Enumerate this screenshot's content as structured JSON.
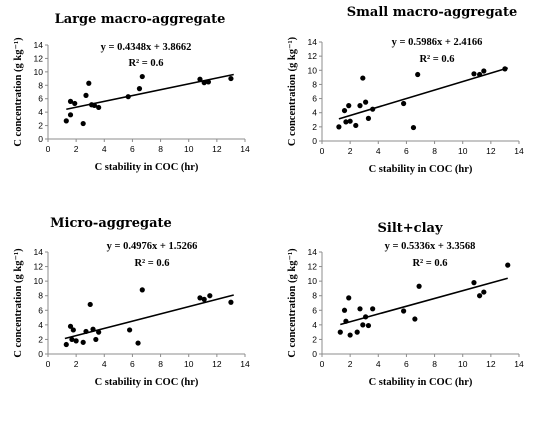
{
  "chart_data": [
    {
      "type": "scatter",
      "title": "Large macro-aggregate",
      "xlabel": "C stability in COC (hr)",
      "ylabel": "C concentration (g kg⁻¹)",
      "xlim": [
        0,
        14
      ],
      "ylim": [
        0,
        14
      ],
      "xticks": [
        0,
        2,
        4,
        6,
        8,
        10,
        12,
        14
      ],
      "yticks": [
        0,
        2,
        4,
        6,
        8,
        10,
        12,
        14
      ],
      "equation": "y = 0.4348x + 3.8662",
      "r2": "R² = 0.6",
      "trend": {
        "slope": 0.4348,
        "intercept": 3.8662,
        "x_range": [
          1.3,
          13.2
        ]
      },
      "points": [
        {
          "x": 1.3,
          "y": 2.7
        },
        {
          "x": 1.6,
          "y": 3.6
        },
        {
          "x": 1.6,
          "y": 5.6
        },
        {
          "x": 1.9,
          "y": 5.3
        },
        {
          "x": 2.5,
          "y": 2.3
        },
        {
          "x": 2.7,
          "y": 6.5
        },
        {
          "x": 2.9,
          "y": 8.3
        },
        {
          "x": 3.1,
          "y": 5.1
        },
        {
          "x": 3.3,
          "y": 5.0
        },
        {
          "x": 3.6,
          "y": 4.7
        },
        {
          "x": 5.7,
          "y": 6.3
        },
        {
          "x": 6.5,
          "y": 7.5
        },
        {
          "x": 6.7,
          "y": 9.3
        },
        {
          "x": 10.8,
          "y": 8.9
        },
        {
          "x": 11.1,
          "y": 8.4
        },
        {
          "x": 11.4,
          "y": 8.5
        },
        {
          "x": 13.0,
          "y": 9.0
        }
      ]
    },
    {
      "type": "scatter",
      "title": "Small macro-aggregate",
      "xlabel": "C stability in COC (hr)",
      "ylabel": "C concentration (g kg⁻¹)",
      "xlim": [
        0,
        14
      ],
      "ylim": [
        0,
        14
      ],
      "xticks": [
        0,
        2,
        4,
        6,
        8,
        10,
        12,
        14
      ],
      "yticks": [
        0,
        2,
        4,
        6,
        8,
        10,
        12,
        14
      ],
      "equation": "y = 0.5986x + 2.4166",
      "r2": "R² = 0.6",
      "trend": {
        "slope": 0.5986,
        "intercept": 2.4166,
        "x_range": [
          1.2,
          13.2
        ]
      },
      "points": [
        {
          "x": 1.2,
          "y": 2.0
        },
        {
          "x": 1.6,
          "y": 4.3
        },
        {
          "x": 1.7,
          "y": 2.7
        },
        {
          "x": 1.9,
          "y": 5.0
        },
        {
          "x": 2.0,
          "y": 2.8
        },
        {
          "x": 2.4,
          "y": 2.2
        },
        {
          "x": 2.7,
          "y": 5.0
        },
        {
          "x": 2.9,
          "y": 8.9
        },
        {
          "x": 3.1,
          "y": 5.5
        },
        {
          "x": 3.3,
          "y": 3.2
        },
        {
          "x": 3.6,
          "y": 4.5
        },
        {
          "x": 5.8,
          "y": 5.3
        },
        {
          "x": 6.5,
          "y": 1.9
        },
        {
          "x": 6.8,
          "y": 9.4
        },
        {
          "x": 10.8,
          "y": 9.5
        },
        {
          "x": 11.2,
          "y": 9.4
        },
        {
          "x": 11.5,
          "y": 9.9
        },
        {
          "x": 13.0,
          "y": 10.2
        }
      ]
    },
    {
      "type": "scatter",
      "title": "Micro-aggregate",
      "xlabel": "C stability in COC (hr)",
      "ylabel": "C concentration (g kg⁻¹)",
      "xlim": [
        0,
        14
      ],
      "ylim": [
        0,
        14
      ],
      "xticks": [
        0,
        2,
        4,
        6,
        8,
        10,
        12,
        14
      ],
      "yticks": [
        0,
        2,
        4,
        6,
        8,
        10,
        12,
        14
      ],
      "equation": "y = 0.4976x + 1.5266",
      "r2": "R² = 0.6",
      "trend": {
        "slope": 0.4976,
        "intercept": 1.5266,
        "x_range": [
          1.2,
          13.2
        ]
      },
      "points": [
        {
          "x": 1.3,
          "y": 1.3
        },
        {
          "x": 1.6,
          "y": 3.8
        },
        {
          "x": 1.7,
          "y": 2.0
        },
        {
          "x": 1.8,
          "y": 3.3
        },
        {
          "x": 2.0,
          "y": 1.8
        },
        {
          "x": 2.5,
          "y": 1.6
        },
        {
          "x": 2.7,
          "y": 3.1
        },
        {
          "x": 3.0,
          "y": 6.8
        },
        {
          "x": 3.2,
          "y": 3.4
        },
        {
          "x": 3.4,
          "y": 2.0
        },
        {
          "x": 3.6,
          "y": 3.0
        },
        {
          "x": 5.8,
          "y": 3.3
        },
        {
          "x": 6.4,
          "y": 1.5
        },
        {
          "x": 6.7,
          "y": 8.8
        },
        {
          "x": 10.8,
          "y": 7.7
        },
        {
          "x": 11.1,
          "y": 7.5
        },
        {
          "x": 11.5,
          "y": 8.0
        },
        {
          "x": 13.0,
          "y": 7.1
        }
      ]
    },
    {
      "type": "scatter",
      "title": "Silt+clay",
      "xlabel": "C stability in COC (hr)",
      "ylabel": "C concentration (g kg⁻¹)",
      "xlim": [
        0,
        14
      ],
      "ylim": [
        0,
        14
      ],
      "xticks": [
        0,
        2,
        4,
        6,
        8,
        10,
        12,
        14
      ],
      "yticks": [
        0,
        2,
        4,
        6,
        8,
        10,
        12,
        14
      ],
      "equation": "y = 0.5336x + 3.3568",
      "r2": "R² = 0.6",
      "trend": {
        "slope": 0.5336,
        "intercept": 3.3568,
        "x_range": [
          1.3,
          13.2
        ]
      },
      "points": [
        {
          "x": 1.3,
          "y": 3.0
        },
        {
          "x": 1.6,
          "y": 6.0
        },
        {
          "x": 1.7,
          "y": 4.5
        },
        {
          "x": 1.9,
          "y": 7.7
        },
        {
          "x": 2.0,
          "y": 2.6
        },
        {
          "x": 2.5,
          "y": 3.0
        },
        {
          "x": 2.7,
          "y": 6.2
        },
        {
          "x": 2.9,
          "y": 4.0
        },
        {
          "x": 3.1,
          "y": 5.1
        },
        {
          "x": 3.3,
          "y": 3.9
        },
        {
          "x": 3.6,
          "y": 6.2
        },
        {
          "x": 5.8,
          "y": 5.9
        },
        {
          "x": 6.6,
          "y": 4.8
        },
        {
          "x": 6.9,
          "y": 9.3
        },
        {
          "x": 10.8,
          "y": 9.8
        },
        {
          "x": 11.2,
          "y": 8.0
        },
        {
          "x": 11.5,
          "y": 8.5
        },
        {
          "x": 13.2,
          "y": 12.2
        }
      ]
    }
  ]
}
